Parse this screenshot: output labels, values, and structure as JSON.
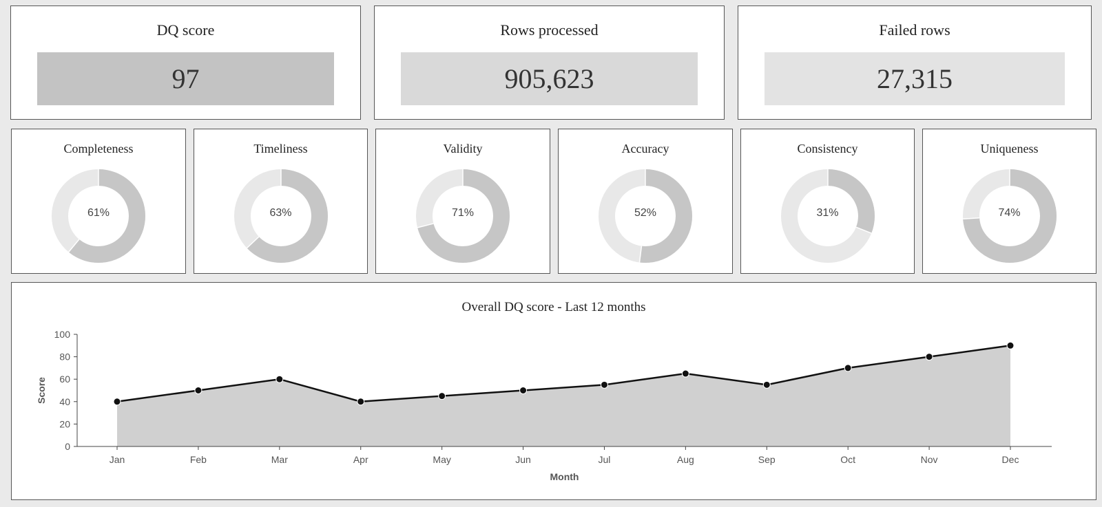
{
  "kpis": [
    {
      "title": "DQ score",
      "value": "97",
      "box_color": "#c3c3c3"
    },
    {
      "title": "Rows processed",
      "value": "905,623",
      "box_color": "#d9d9d9"
    },
    {
      "title": "Failed rows",
      "value": "27,315",
      "box_color": "#e3e3e3"
    }
  ],
  "dimensions": [
    {
      "title": "Completeness",
      "label": "61%",
      "percent": 61
    },
    {
      "title": "Timeliness",
      "label": "63%",
      "percent": 63
    },
    {
      "title": "Validity",
      "label": "71%",
      "percent": 71
    },
    {
      "title": "Accuracy",
      "label": "52%",
      "percent": 52
    },
    {
      "title": "Consistency",
      "label": "31%",
      "percent": 31
    },
    {
      "title": "Uniqueness",
      "label": "74%",
      "percent": 74
    }
  ],
  "colors": {
    "donut_filled": "#c6c6c6",
    "donut_remaining": "#e8e8e8",
    "area_fill": "#d0d0d0",
    "line": "#111111"
  },
  "chart_data": {
    "type": "area",
    "title": "Overall DQ score - Last 12 months",
    "xlabel": "Month",
    "ylabel": "Score",
    "categories": [
      "Jan",
      "Feb",
      "Mar",
      "Apr",
      "May",
      "Jun",
      "Jul",
      "Aug",
      "Sep",
      "Oct",
      "Nov",
      "Dec"
    ],
    "values": [
      40,
      50,
      60,
      40,
      45,
      50,
      55,
      65,
      55,
      70,
      80,
      90
    ],
    "ylim": [
      0,
      100
    ],
    "yticks": [
      0,
      20,
      40,
      60,
      80,
      100
    ],
    "grid": false,
    "legend": "none",
    "markers": true
  }
}
